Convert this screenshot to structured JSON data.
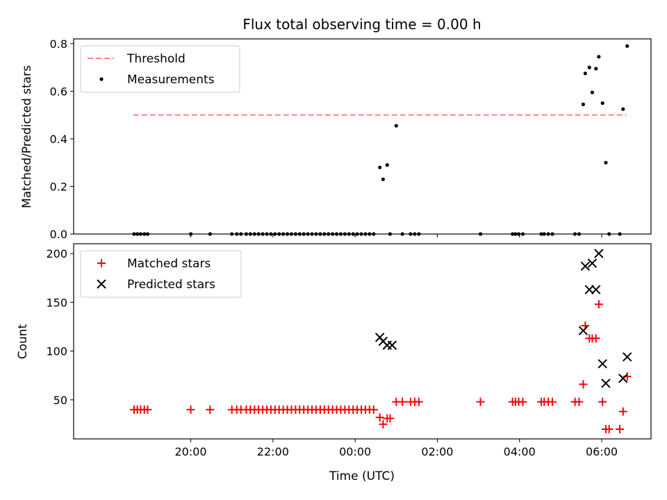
{
  "figure": {
    "title": "Flux total observing time = 0.00 h"
  },
  "chart_data": [
    {
      "type": "scatter",
      "ylabel": "Matched/Predicted stars",
      "xlabel": "",
      "xlim_hours": [
        17.15,
        31.2
      ],
      "ylim": [
        0,
        0.82
      ],
      "yticks": [
        0.0,
        0.2,
        0.4,
        0.6,
        0.8
      ],
      "ytick_labels": [
        "0.0",
        "0.2",
        "0.4",
        "0.6",
        "0.8"
      ],
      "xticks_hours": [
        20,
        22,
        24,
        26,
        28,
        30
      ],
      "xtick_labels": [],
      "legend_placement": "upper left",
      "grid": false,
      "series": [
        {
          "name": "Threshold",
          "style": "dashed-line",
          "color": "#ff7f7f",
          "x_hours": [
            18.6,
            30.6
          ],
          "y": [
            0.5,
            0.5
          ]
        },
        {
          "name": "Measurements",
          "style": "dot",
          "color": "#000000",
          "x_hours": [
            18.62,
            18.7,
            18.78,
            18.87,
            18.95,
            20.0,
            20.47,
            21.0,
            21.12,
            21.22,
            21.35,
            21.45,
            21.55,
            21.65,
            21.75,
            21.85,
            21.95,
            22.05,
            22.15,
            22.25,
            22.35,
            22.45,
            22.55,
            22.65,
            22.75,
            22.85,
            22.95,
            23.05,
            23.15,
            23.25,
            23.35,
            23.45,
            23.55,
            23.65,
            23.75,
            23.85,
            23.95,
            24.05,
            24.15,
            24.25,
            24.35,
            24.45,
            24.6,
            24.68,
            24.78,
            24.85,
            25.0,
            25.15,
            25.35,
            25.45,
            25.55,
            27.05,
            27.83,
            27.9,
            27.98,
            28.08,
            28.53,
            28.6,
            28.7,
            28.8,
            29.35,
            29.45,
            29.55,
            29.6,
            29.7,
            29.77,
            29.86,
            29.93,
            30.02,
            30.1,
            30.18,
            30.44,
            30.52,
            30.62
          ],
          "y": [
            0,
            0,
            0,
            0,
            0,
            0,
            0,
            0,
            0,
            0,
            0,
            0,
            0,
            0,
            0,
            0,
            0,
            0,
            0,
            0,
            0,
            0,
            0,
            0,
            0,
            0,
            0,
            0,
            0,
            0,
            0,
            0,
            0,
            0,
            0,
            0,
            0,
            0,
            0,
            0,
            0,
            0,
            0.28,
            0.23,
            0.29,
            0,
            0.455,
            0,
            0,
            0,
            0,
            0,
            0,
            0,
            0,
            0,
            0,
            0,
            0,
            0,
            0,
            0,
            0.545,
            0.675,
            0.7,
            0.595,
            0.695,
            0.745,
            0.55,
            0.3,
            0,
            0,
            0.525,
            0.79
          ]
        }
      ]
    },
    {
      "type": "scatter",
      "ylabel": "Count",
      "xlabel": "Time (UTC)",
      "xlim_hours": [
        17.15,
        31.2
      ],
      "ylim": [
        10,
        210
      ],
      "yticks": [
        50,
        100,
        150,
        200
      ],
      "ytick_labels": [
        "50",
        "100",
        "150",
        "200"
      ],
      "xticks_hours": [
        20,
        22,
        24,
        26,
        28,
        30
      ],
      "xtick_labels": [
        "20:00",
        "22:00",
        "00:00",
        "02:00",
        "04:00",
        "06:00"
      ],
      "legend_placement": "upper left",
      "grid": false,
      "series": [
        {
          "name": "Matched stars",
          "style": "plus",
          "color": "#ff0000",
          "x_hours": [
            18.62,
            18.7,
            18.78,
            18.87,
            18.95,
            20.0,
            20.47,
            21.0,
            21.12,
            21.22,
            21.35,
            21.45,
            21.55,
            21.65,
            21.75,
            21.85,
            21.95,
            22.05,
            22.15,
            22.25,
            22.35,
            22.45,
            22.55,
            22.65,
            22.75,
            22.85,
            22.95,
            23.05,
            23.15,
            23.25,
            23.35,
            23.45,
            23.55,
            23.65,
            23.75,
            23.85,
            23.95,
            24.05,
            24.15,
            24.25,
            24.35,
            24.45,
            24.6,
            24.68,
            24.78,
            24.85,
            25.0,
            25.15,
            25.35,
            25.45,
            25.55,
            27.05,
            27.83,
            27.9,
            27.98,
            28.08,
            28.53,
            28.6,
            28.7,
            28.8,
            29.35,
            29.45,
            29.55,
            29.6,
            29.7,
            29.77,
            29.86,
            29.93,
            30.02,
            30.1,
            30.18,
            30.44,
            30.52,
            30.62
          ],
          "y": [
            40,
            40,
            40,
            40,
            40,
            40,
            40,
            40,
            40,
            40,
            40,
            40,
            40,
            40,
            40,
            40,
            40,
            40,
            40,
            40,
            40,
            40,
            40,
            40,
            40,
            40,
            40,
            40,
            40,
            40,
            40,
            40,
            40,
            40,
            40,
            40,
            40,
            40,
            40,
            40,
            40,
            40,
            32,
            25,
            31,
            31,
            48,
            48,
            48,
            48,
            48,
            48,
            48,
            48,
            48,
            48,
            48,
            48,
            48,
            48,
            48,
            48,
            66,
            126,
            113,
            113,
            113,
            148,
            48,
            20,
            20,
            20,
            38,
            74
          ]
        },
        {
          "name": "Predicted stars",
          "style": "x",
          "color": "#000000",
          "x_hours": [
            24.6,
            24.68,
            24.78,
            24.9,
            29.55,
            29.6,
            29.7,
            29.77,
            29.86,
            29.93,
            30.02,
            30.1,
            30.52,
            30.62
          ],
          "y": [
            114,
            110,
            106,
            106,
            121,
            187,
            163,
            190,
            163,
            200,
            87,
            67,
            72,
            94
          ]
        }
      ]
    }
  ]
}
